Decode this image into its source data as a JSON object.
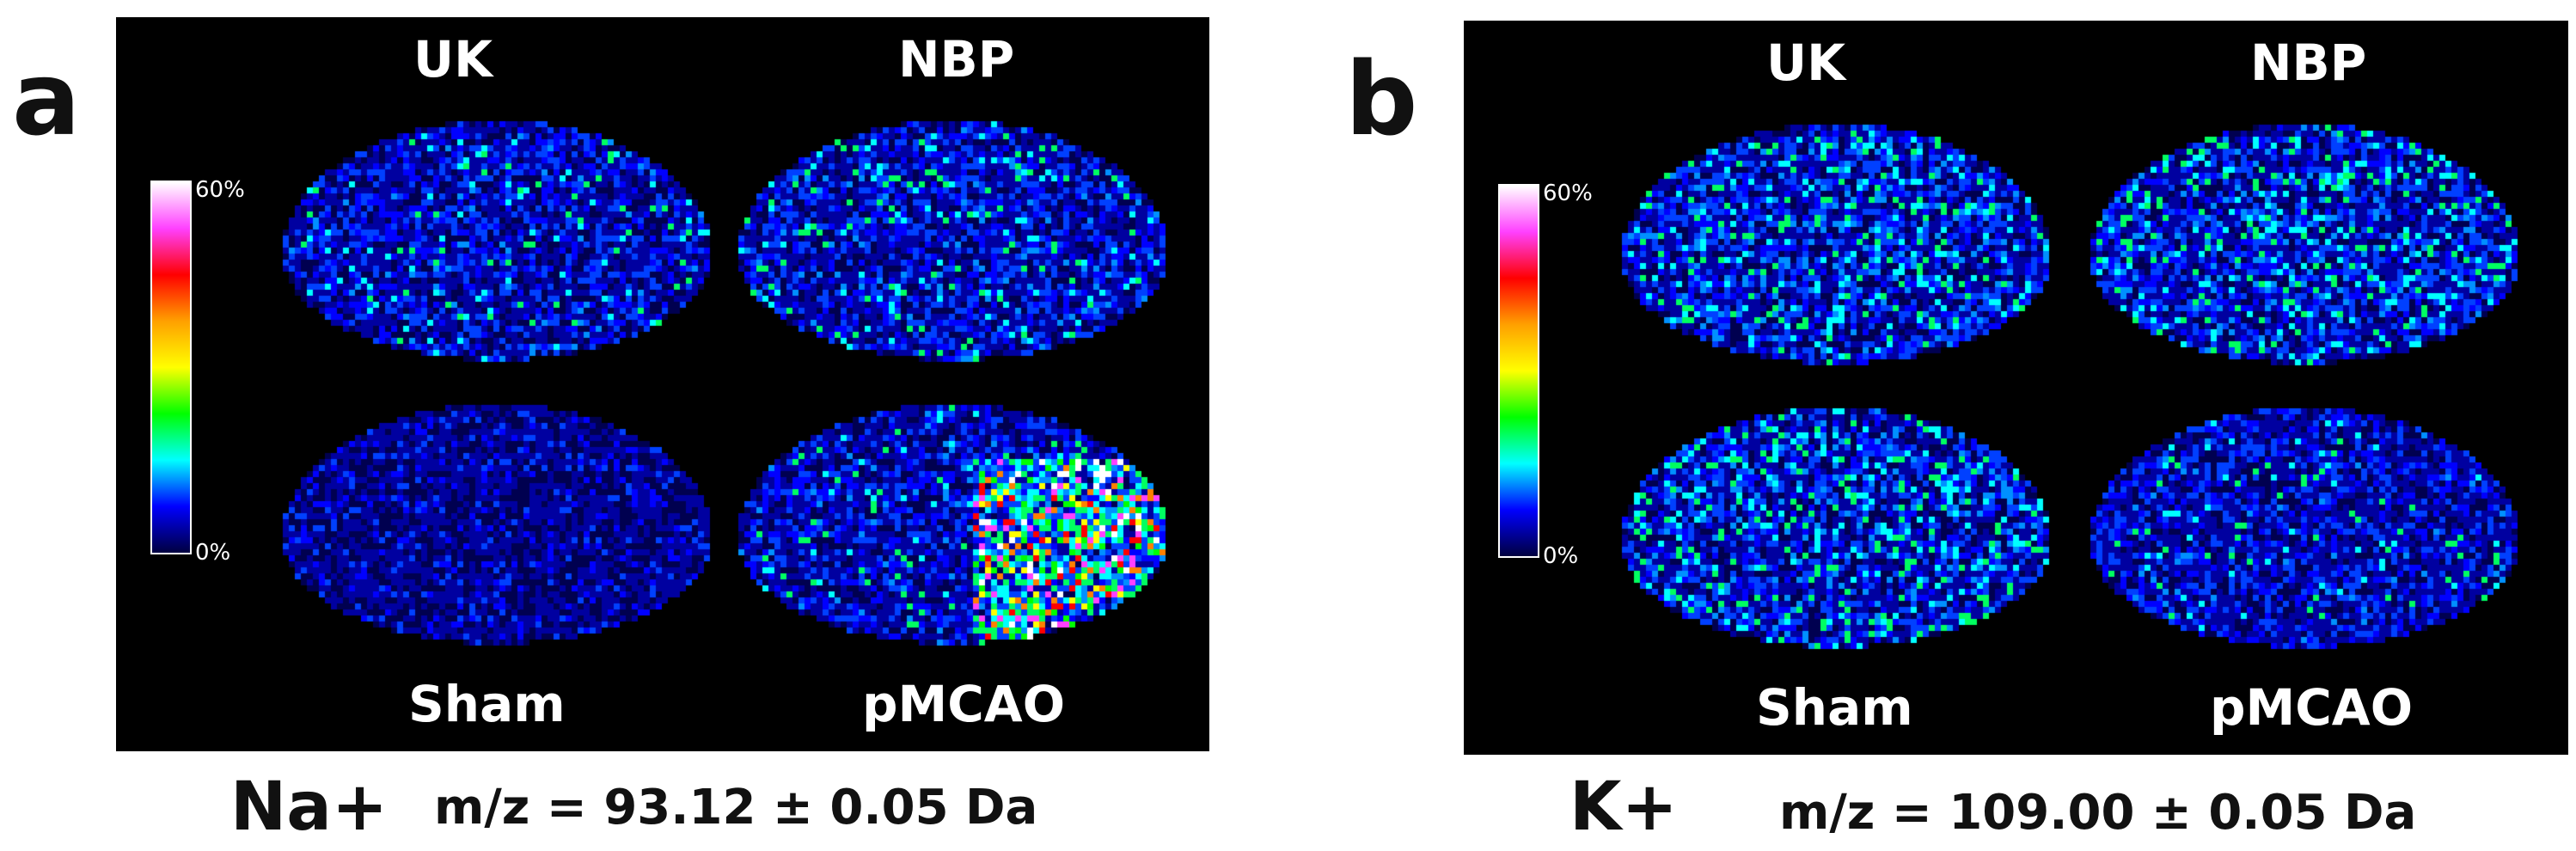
{
  "panels": [
    {
      "letter": "a",
      "columns": [
        "UK",
        "NBP"
      ],
      "rows": [
        "Sham",
        "pMCAO"
      ],
      "scale": {
        "max": "60%",
        "min": "0%"
      },
      "ion": "Na+",
      "mz": "m/z = 93.12 ± 0.05 Da"
    },
    {
      "letter": "b",
      "columns": [
        "UK",
        "NBP"
      ],
      "rows": [
        "Sham",
        "pMCAO"
      ],
      "scale": {
        "max": "60%",
        "min": "0%"
      },
      "ion": "K+",
      "mz": "m/z = 109.00 ± 0.05 Da"
    }
  ],
  "colors": {
    "background": "#000000",
    "scale_gradient": [
      "#ffffff",
      "#ff40ff",
      "#ff0000",
      "#ffa000",
      "#ffff00",
      "#00ff00",
      "#00ffff",
      "#0000ff",
      "#000040"
    ]
  }
}
